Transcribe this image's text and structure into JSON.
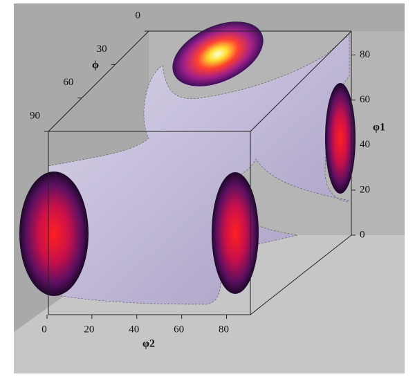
{
  "chart_data": {
    "type": "isosurface",
    "phi2_axis": {
      "label": "φ2",
      "lim": [
        0,
        90
      ],
      "ticks": [
        0,
        20,
        40,
        60,
        80
      ]
    },
    "phi1_axis": {
      "label": "φ1",
      "lim": [
        0,
        90
      ],
      "ticks": [
        0,
        20,
        40,
        60,
        80
      ]
    },
    "Phi_axis": {
      "label": "ϕ",
      "lim": [
        0,
        90
      ],
      "ticks": [
        0,
        30,
        60,
        90
      ]
    }
  }
}
